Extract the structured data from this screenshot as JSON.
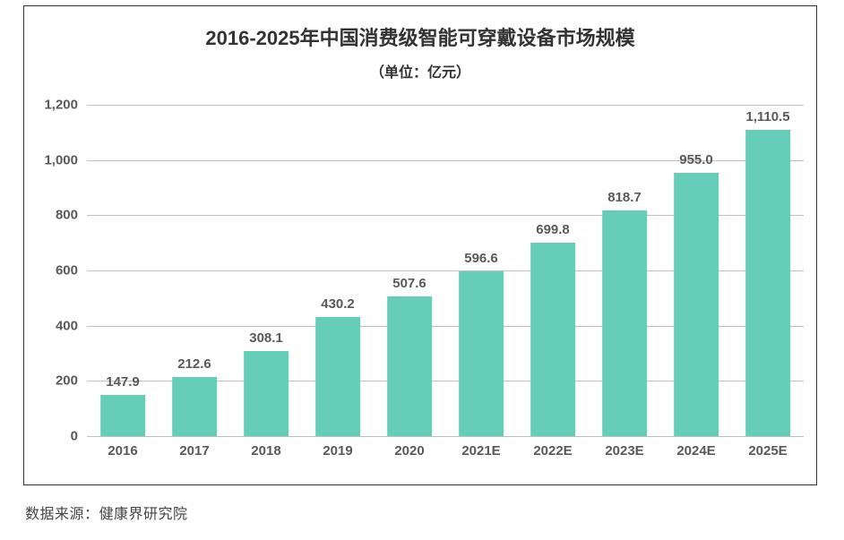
{
  "chart": {
    "title": "2016-2025年中国消费级智能可穿戴设备市场规模",
    "subtitle": "（单位：亿元）",
    "title_fontsize": 22,
    "subtitle_fontsize": 16,
    "title_color": "#333333",
    "type": "bar",
    "categories": [
      "2016",
      "2017",
      "2018",
      "2019",
      "2020",
      "2021E",
      "2022E",
      "2023E",
      "2024E",
      "2025E"
    ],
    "values": [
      147.9,
      212.6,
      308.1,
      430.2,
      507.6,
      596.6,
      699.8,
      818.7,
      955.0,
      1110.5
    ],
    "value_labels": [
      "147.9",
      "212.6",
      "308.1",
      "430.2",
      "507.6",
      "596.6",
      "699.8",
      "818.7",
      "955.0",
      "1,110.5"
    ],
    "bar_color": "#66cdb9",
    "background_color": "#ffffff",
    "grid_color": "#bfbfbf",
    "axis_label_color": "#595959",
    "value_label_color": "#595959",
    "yaxis": {
      "min": 0,
      "max": 1200,
      "step": 200,
      "tick_labels": [
        "0",
        "200",
        "400",
        "600",
        "800",
        "1,000",
        "1,200"
      ],
      "label_fontsize": 15
    },
    "xaxis": {
      "label_fontsize": 15
    },
    "value_label_fontsize": 15,
    "bar_width_ratio": 0.62,
    "frame_border_color": "#333333"
  },
  "source_note": "数据来源：健康界研究院",
  "source_fontsize": 16
}
